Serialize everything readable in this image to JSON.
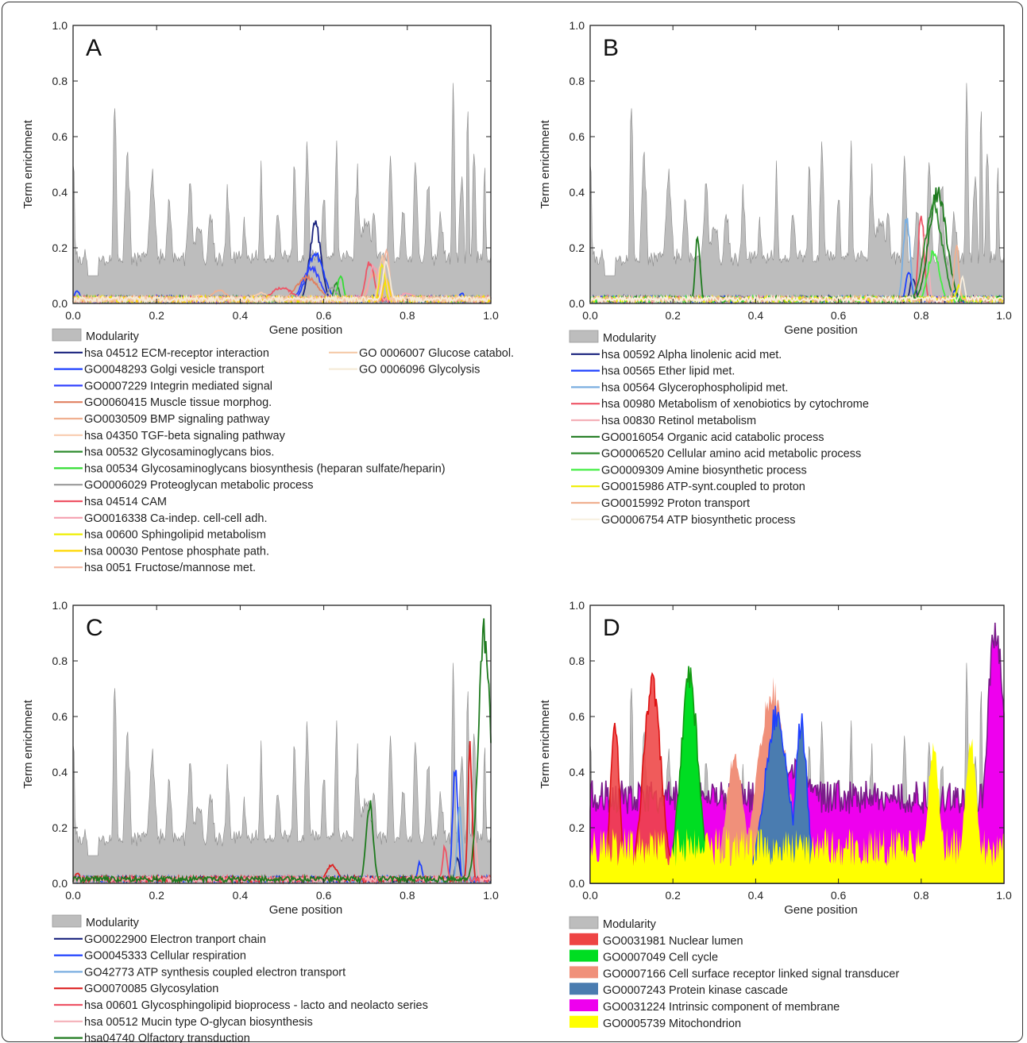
{
  "chart_data": [
    {
      "type": "area",
      "panel": "A",
      "xlabel": "Gene position",
      "ylabel": "Term enrichment",
      "xlim": [
        0,
        1
      ],
      "ylim": [
        0,
        1
      ],
      "xticks": [
        "0.0",
        "0.2",
        "0.4",
        "0.6",
        "0.8",
        "1.0"
      ],
      "yticks": [
        "0.0",
        "0.2",
        "0.4",
        "0.6",
        "0.8",
        "1.0"
      ],
      "legend_placement": "below",
      "series": [
        {
          "name": "Modularity",
          "style": "area",
          "color": "#bdbdbd"
        },
        {
          "name": "hsa 04512  ECM-receptor interaction",
          "color": "#1a237e",
          "peaks": [
            [
              0.58,
              0.3,
              0.02
            ]
          ]
        },
        {
          "name": "GO0048293  Golgi vesicle transport",
          "color": "#1e40ff",
          "peaks": [
            [
              0.58,
              0.19,
              0.03
            ],
            [
              0.01,
              0.05,
              0.01
            ],
            [
              0.93,
              0.04,
              0.01
            ]
          ]
        },
        {
          "name": "GO0007229  Integrin mediated signal",
          "color": "#3344ff",
          "peaks": [
            [
              0.57,
              0.14,
              0.03
            ],
            [
              0.2,
              0.03,
              0.02
            ]
          ]
        },
        {
          "name": "GO0060415  Muscle tissue morphog.",
          "color": "#e08060",
          "peaks": [
            [
              0.56,
              0.1,
              0.04
            ]
          ]
        },
        {
          "name": "GO0030509  BMP signaling pathway",
          "color": "#f0b090",
          "peaks": [
            [
              0.35,
              0.05,
              0.03
            ],
            [
              0.72,
              0.12,
              0.02
            ]
          ]
        },
        {
          "name": "hsa 04350  TGF-beta signaling pathway",
          "color": "#f8cdb0",
          "peaks": [
            [
              0.3,
              0.03,
              0.03
            ],
            [
              0.45,
              0.04,
              0.03
            ]
          ]
        },
        {
          "name": "hsa 00532  Glycosaminoglycans bios.",
          "color": "#2e8b2e",
          "peaks": [
            [
              0.63,
              0.08,
              0.01
            ]
          ]
        },
        {
          "name": "hsa 00534  Glycosaminoglycans biosynthesis (heparan sulfate/heparin)",
          "color": "#33dd33",
          "peaks": [
            [
              0.64,
              0.11,
              0.01
            ]
          ]
        },
        {
          "name": "GO0006029  Proteoglycan metabolic process",
          "color": "#999999",
          "peaks": [
            [
              0.62,
              0.06,
              0.02
            ]
          ]
        },
        {
          "name": "hsa 04514 CAM",
          "color": "#ee5566",
          "peaks": [
            [
              0.71,
              0.16,
              0.015
            ],
            [
              0.5,
              0.06,
              0.04
            ]
          ]
        },
        {
          "name": "GO0016338  Ca-indep. cell-cell adh.",
          "color": "#f4a0b0",
          "peaks": [
            [
              0.72,
              0.15,
              0.015
            ],
            [
              0.8,
              0.04,
              0.03
            ]
          ]
        },
        {
          "name": "hsa 00600  Sphingolipid metabolism",
          "color": "#eeee00",
          "peaks": [
            [
              0.74,
              0.15,
              0.01
            ],
            [
              0.85,
              0.02,
              0.02
            ]
          ]
        },
        {
          "name": "hsa 00030  Pentose phosphate path.",
          "color": "#ffd700",
          "peaks": [
            [
              0.75,
              0.1,
              0.01
            ]
          ]
        },
        {
          "name": "hsa 0051  Fructose/mannose met.",
          "color": "#f5b7a0",
          "peaks": [
            [
              0.75,
              0.21,
              0.01
            ]
          ]
        },
        {
          "name": "GO 0006007  Glucose catabol.",
          "color": "#f5c9a8",
          "peaks": [
            [
              0.74,
              0.18,
              0.012
            ]
          ]
        },
        {
          "name": "GO 0006096  Glycolysis",
          "color": "#f5ebd8",
          "peaks": [
            [
              0.75,
              0.16,
              0.012
            ]
          ]
        }
      ]
    },
    {
      "type": "area",
      "panel": "B",
      "xlabel": "Gene position",
      "ylabel": "Term enrichment",
      "xlim": [
        0,
        1
      ],
      "ylim": [
        0,
        1
      ],
      "xticks": [
        "0.0",
        "0.2",
        "0.4",
        "0.6",
        "0.8",
        "1.0"
      ],
      "yticks": [
        "0.0",
        "0.2",
        "0.4",
        "0.6",
        "0.8",
        "1.0"
      ],
      "legend_placement": "below",
      "series": [
        {
          "name": "Modularity",
          "style": "area",
          "color": "#bdbdbd"
        },
        {
          "name": "hsa 00592  Alpha linolenic acid met.",
          "color": "#1a237e",
          "peaks": [
            [
              0.78,
              0.1,
              0.01
            ]
          ]
        },
        {
          "name": "hsa 00565  Ether lipid met.",
          "color": "#1e40ff",
          "peaks": [
            [
              0.77,
              0.13,
              0.01
            ],
            [
              0.88,
              0.05,
              0.01
            ]
          ]
        },
        {
          "name": "hsa 00564  Glycerophospholipid met.",
          "color": "#7aaee0",
          "peaks": [
            [
              0.765,
              0.33,
              0.012
            ]
          ]
        },
        {
          "name": "hsa 00980  Metabolism of xenobiotics by cytochrome",
          "color": "#ee5566",
          "peaks": [
            [
              0.8,
              0.35,
              0.01
            ]
          ]
        },
        {
          "name": "hsa 00830  Retinol metabolism",
          "color": "#f4b0b8",
          "peaks": [
            [
              0.81,
              0.28,
              0.01
            ]
          ]
        },
        {
          "name": "GO0016054  Organic acid catabolic process",
          "color": "#1e7a1e",
          "peaks": [
            [
              0.84,
              0.43,
              0.03
            ],
            [
              0.26,
              0.26,
              0.008
            ]
          ]
        },
        {
          "name": "GO0006520  Cellular amino acid metabolic process",
          "color": "#2e8b2e",
          "peaks": [
            [
              0.83,
              0.38,
              0.03
            ]
          ]
        },
        {
          "name": "GO0009309  Amine biosynthetic process",
          "color": "#44ee44",
          "peaks": [
            [
              0.83,
              0.2,
              0.02
            ]
          ]
        },
        {
          "name": "GO0015986  ATP-synt.coupled to proton",
          "color": "#eeee00",
          "peaks": [
            [
              0.89,
              0.07,
              0.008
            ]
          ]
        },
        {
          "name": "GO0015992  Proton transport",
          "color": "#f0b090",
          "peaks": [
            [
              0.885,
              0.23,
              0.008
            ]
          ]
        },
        {
          "name": "GO0006754  ATP biosynthetic process",
          "color": "#f8f0e0",
          "peaks": [
            [
              0.9,
              0.1,
              0.008
            ]
          ]
        }
      ]
    },
    {
      "type": "area",
      "panel": "C",
      "xlabel": "Gene position",
      "ylabel": "Term enrichment",
      "xlim": [
        0,
        1
      ],
      "ylim": [
        0,
        1
      ],
      "xticks": [
        "0.0",
        "0.2",
        "0.4",
        "0.6",
        "0.8",
        "1.0"
      ],
      "yticks": [
        "0.0",
        "0.2",
        "0.4",
        "0.6",
        "0.8",
        "1.0"
      ],
      "legend_placement": "below",
      "series": [
        {
          "name": "Modularity",
          "style": "area",
          "color": "#bdbdbd"
        },
        {
          "name": "GO0022900  Electron tranport chain",
          "color": "#1a237e",
          "peaks": [
            [
              0.92,
              0.1,
              0.008
            ]
          ]
        },
        {
          "name": "GO0045333  Cellular respiration",
          "color": "#1e40ff",
          "peaks": [
            [
              0.915,
              0.45,
              0.009
            ],
            [
              0.83,
              0.08,
              0.008
            ]
          ]
        },
        {
          "name": "GO42773  ATP synthesis coupled electron transport",
          "color": "#7aaee0",
          "peaks": [
            [
              0.925,
              0.3,
              0.008
            ]
          ]
        },
        {
          "name": "GO0070085  Glycosylation",
          "color": "#dd2222",
          "peaks": [
            [
              0.95,
              0.52,
              0.007
            ],
            [
              0.62,
              0.07,
              0.02
            ],
            [
              0.01,
              0.04,
              0.01
            ]
          ]
        },
        {
          "name": "hsa 00601  Glycosphingolipid bioprocess - lacto and neolacto series",
          "color": "#ee5566",
          "peaks": [
            [
              0.89,
              0.14,
              0.008
            ]
          ]
        },
        {
          "name": "hsa 00512  Mucin type O-glycan biosynthesis",
          "color": "#f4b0b8",
          "peaks": [
            [
              0.96,
              0.2,
              0.008
            ]
          ]
        },
        {
          "name": "hsa04740  Olfactory transduction",
          "color": "#1e7a1e",
          "peaks": [
            [
              0.71,
              0.31,
              0.012
            ],
            [
              0.985,
              0.97,
              0.02
            ]
          ]
        }
      ]
    },
    {
      "type": "area",
      "panel": "D",
      "xlabel": "Gene position",
      "ylabel": "Term enrichment",
      "xlim": [
        0,
        1
      ],
      "ylim": [
        0,
        1
      ],
      "xticks": [
        "0.0",
        "0.2",
        "0.4",
        "0.6",
        "0.8",
        "1.0"
      ],
      "yticks": [
        "0.0",
        "0.2",
        "0.4",
        "0.6",
        "0.8",
        "1.0"
      ],
      "legend_placement": "below",
      "series": [
        {
          "name": "Modularity",
          "style": "area",
          "color": "#bdbdbd"
        },
        {
          "name": "GO0031981 Nuclear lumen",
          "color": "#ee4444",
          "peaks": [
            [
              0.15,
              0.78,
              0.03
            ],
            [
              0.06,
              0.62,
              0.015
            ]
          ]
        },
        {
          "name": "GO0007049 Cell cycle",
          "color": "#00dd22",
          "peaks": [
            [
              0.24,
              0.79,
              0.03
            ]
          ]
        },
        {
          "name": "GO0007166 Cell surface receptor linked signal transducer",
          "color": "#f0907a",
          "peaks": [
            [
              0.44,
              0.75,
              0.05
            ],
            [
              0.35,
              0.5,
              0.03
            ]
          ]
        },
        {
          "name": "GO0007243 Protein kinase cascade",
          "color": "#4a7cb0",
          "peaks": [
            [
              0.45,
              0.65,
              0.04
            ],
            [
              0.51,
              0.62,
              0.02
            ]
          ]
        },
        {
          "name": "GO0031224 Intrinsic component of membrane",
          "color": "#ee00ee",
          "peaks": [
            [
              0.98,
              0.97,
              0.03
            ],
            [
              0.5,
              0.45,
              0.08
            ]
          ]
        },
        {
          "name": "GO0005739 Mitochondrion",
          "color": "#ffff00",
          "peaks": [
            [
              0.83,
              0.52,
              0.02
            ],
            [
              0.92,
              0.55,
              0.02
            ]
          ]
        }
      ]
    }
  ]
}
